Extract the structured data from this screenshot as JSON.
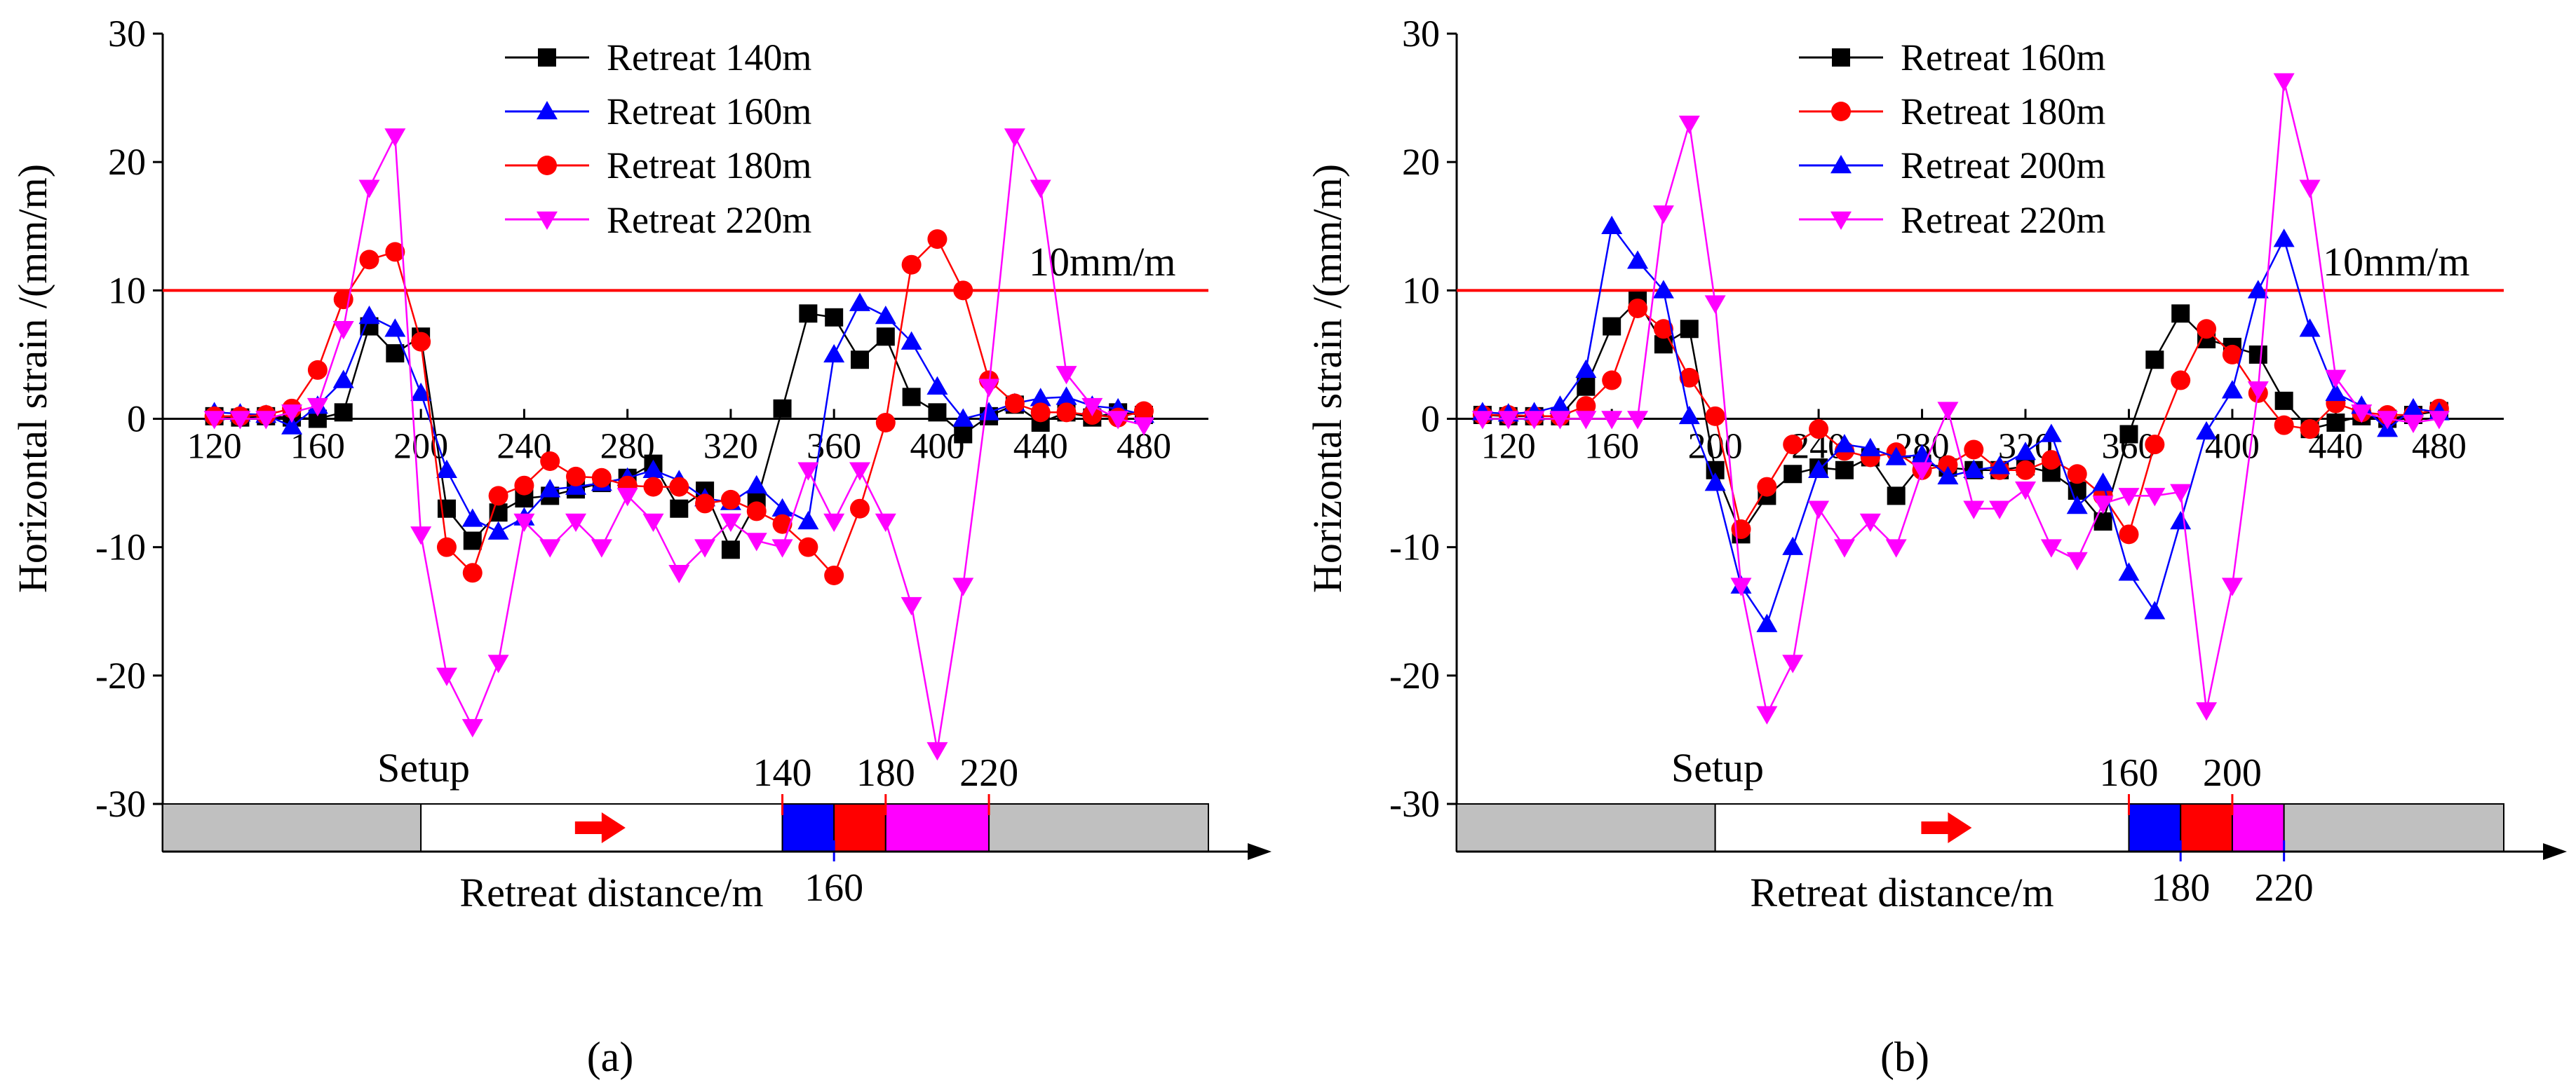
{
  "chart_data": [
    {
      "panel_label": "(a)",
      "type": "line",
      "xlabel": "Retreat distance/m",
      "ylabel": "Horizontal strain /(mm/m)",
      "xlim": [
        100,
        505
      ],
      "ylim": [
        -30,
        30
      ],
      "xticks": [
        120,
        160,
        200,
        240,
        280,
        320,
        360,
        400,
        440,
        480
      ],
      "yticks": [
        -30,
        -20,
        -10,
        0,
        10,
        20,
        30
      ],
      "threshold": {
        "value": 10,
        "label": "10mm/m",
        "color": "#ff0000"
      },
      "legend_position": "top-center",
      "x": [
        120,
        130,
        140,
        150,
        160,
        170,
        180,
        190,
        200,
        210,
        220,
        230,
        240,
        250,
        260,
        270,
        280,
        290,
        300,
        310,
        320,
        330,
        340,
        350,
        360,
        370,
        380,
        390,
        400,
        410,
        420,
        430,
        440,
        450,
        460,
        470,
        480
      ],
      "series": [
        {
          "name": "Retreat 140m",
          "color": "#000000",
          "marker": "square",
          "values": [
            0.2,
            0.1,
            0.2,
            0.1,
            0,
            0.5,
            7.2,
            5.1,
            6.4,
            -7,
            -9.5,
            -7.3,
            -6.2,
            -6,
            -5.5,
            -5,
            -4.6,
            -3.5,
            -7,
            -5.6,
            -10.2,
            -6.5,
            0.8,
            8.2,
            7.9,
            4.6,
            6.4,
            1.7,
            0.5,
            -1.2,
            0.2,
            1.1,
            -0.3,
            0.5,
            0.1,
            0.5,
            0.3
          ]
        },
        {
          "name": "Retreat 160m",
          "color": "#0000ff",
          "marker": "triangle-up",
          "values": [
            0.5,
            0.4,
            0.3,
            -0.6,
            1,
            3,
            8,
            7,
            2,
            -4,
            -7.8,
            -8.8,
            -7.7,
            -5.5,
            -5.3,
            -5,
            -4.6,
            -4,
            -4.8,
            -6.2,
            -6.5,
            -5.2,
            -7,
            -8,
            5,
            9,
            8,
            6,
            2.5,
            0,
            0.5,
            1.2,
            1.6,
            1.7,
            1,
            0.8,
            0.3
          ]
        },
        {
          "name": "Retreat 180m",
          "color": "#ff0000",
          "marker": "circle",
          "values": [
            0.2,
            0.2,
            0.3,
            0.8,
            3.8,
            9.3,
            12.4,
            13,
            6,
            -10,
            -12,
            -6,
            -5.2,
            -3.3,
            -4.5,
            -4.6,
            -5.2,
            -5.3,
            -5.3,
            -6.6,
            -6.3,
            -7.2,
            -8.2,
            -10,
            -12.2,
            -7,
            -0.3,
            12,
            14,
            10,
            3,
            1.2,
            0.5,
            0.5,
            0.3,
            0.1,
            0.6
          ]
        },
        {
          "name": "Retreat 220m",
          "color": "#ff00ff",
          "marker": "triangle-down",
          "values": [
            0,
            0,
            0,
            0.5,
            1,
            7,
            18,
            22,
            -9,
            -20,
            -24,
            -19,
            -8,
            -10,
            -8,
            -10,
            -6,
            -8,
            -12,
            -10,
            -8,
            -9.5,
            -10,
            -4,
            -8,
            -4,
            -8,
            -14.5,
            -25.8,
            -13,
            2.5,
            22,
            18,
            3.5,
            1,
            0,
            -0.5
          ]
        }
      ],
      "annotation": {
        "setup_label": "Setup",
        "top_labels": [
          "140",
          "180",
          "220"
        ],
        "bottom_labels": [
          "160"
        ],
        "regions": [
          {
            "from": 100,
            "to": 200,
            "color": "#c0c0c0"
          },
          {
            "from": 200,
            "to": 340,
            "color": "#ffffff"
          },
          {
            "from": 340,
            "to": 360,
            "color": "#0000ff"
          },
          {
            "from": 360,
            "to": 380,
            "color": "#ff0000"
          },
          {
            "from": 380,
            "to": 420,
            "color": "#ff00ff"
          },
          {
            "from": 420,
            "to": 505,
            "color": "#c0c0c0"
          }
        ],
        "ticks": [
          {
            "at": 340,
            "label": "140",
            "side": "top"
          },
          {
            "at": 360,
            "label": "160",
            "side": "bottom"
          },
          {
            "at": 380,
            "label": "180",
            "side": "top"
          },
          {
            "at": 420,
            "label": "220",
            "side": "top"
          }
        ],
        "arrow_at": 270
      }
    },
    {
      "panel_label": "(b)",
      "type": "line",
      "xlabel": "Retreat distance/m",
      "ylabel": "Horizontal strain /(mm/m)",
      "xlim": [
        100,
        505
      ],
      "ylim": [
        -30,
        30
      ],
      "xticks": [
        120,
        160,
        200,
        240,
        280,
        320,
        360,
        400,
        440,
        480
      ],
      "yticks": [
        -30,
        -20,
        -10,
        0,
        10,
        20,
        30
      ],
      "threshold": {
        "value": 10,
        "label": "10mm/m",
        "color": "#ff0000"
      },
      "legend_position": "top-center",
      "x": [
        110,
        120,
        130,
        140,
        150,
        160,
        170,
        180,
        190,
        200,
        210,
        220,
        230,
        240,
        250,
        260,
        270,
        280,
        290,
        300,
        310,
        320,
        330,
        340,
        350,
        360,
        370,
        380,
        390,
        400,
        410,
        420,
        430,
        440,
        450,
        460,
        470,
        480
      ],
      "series": [
        {
          "name": "Retreat 160m",
          "color": "#000000",
          "marker": "square",
          "values": [
            0.3,
            0.2,
            0.2,
            0.2,
            2.5,
            7.2,
            9.2,
            5.8,
            7,
            -4,
            -9,
            -6,
            -4.3,
            -3.8,
            -4,
            -3,
            -6,
            -3.5,
            -3.8,
            -4,
            -4,
            -3.7,
            -4.2,
            -5.6,
            -8,
            -1.2,
            4.6,
            8.2,
            6.2,
            5.6,
            5,
            1.4,
            -0.8,
            -0.3,
            0.2,
            0,
            0.3,
            0.6
          ]
        },
        {
          "name": "Retreat 180m",
          "color": "#ff0000",
          "marker": "circle",
          "values": [
            0.3,
            0.3,
            0.2,
            0.2,
            1,
            3,
            8.6,
            7,
            3.2,
            0.2,
            -8.6,
            -5.3,
            -2,
            -0.8,
            -2.5,
            -3,
            -2.6,
            -4,
            -3.6,
            -2.4,
            -4,
            -4,
            -3.2,
            -4.3,
            -6,
            -9,
            -2,
            3,
            7,
            5,
            2,
            -0.5,
            -0.8,
            1.2,
            0.5,
            0.3,
            0.3,
            0.8
          ]
        },
        {
          "name": "Retreat 200m",
          "color": "#0000ff",
          "marker": "triangle-up",
          "values": [
            0.5,
            0.4,
            0.5,
            1,
            3.8,
            15,
            12.3,
            10,
            0.2,
            -5,
            -13,
            -16,
            -10,
            -4,
            -2,
            -2.3,
            -3,
            -2.8,
            -4.5,
            -4,
            -3.7,
            -2.6,
            -1.2,
            -6.8,
            -5,
            -12,
            -15,
            -8,
            -1,
            2.2,
            10,
            14,
            7,
            2,
            1,
            -0.8,
            0.8,
            0.5
          ]
        },
        {
          "name": "Retreat 220m",
          "color": "#ff00ff",
          "marker": "triangle-down",
          "values": [
            0,
            0,
            0,
            0,
            0,
            0,
            0,
            16,
            23,
            9,
            -13,
            -23,
            -19,
            -7,
            -10,
            -8,
            -10,
            -4,
            0.7,
            -7,
            -7,
            -5.5,
            -10,
            -11,
            -6.6,
            -6,
            -6,
            -5.7,
            -22.7,
            -13,
            2.3,
            26.3,
            18,
            3.2,
            0.5,
            0,
            -0.3,
            0
          ]
        }
      ],
      "annotation": {
        "setup_label": "Setup",
        "top_labels": [
          "160",
          "200"
        ],
        "bottom_labels": [
          "180",
          "220"
        ],
        "regions": [
          {
            "from": 100,
            "to": 200,
            "color": "#c0c0c0"
          },
          {
            "from": 200,
            "to": 360,
            "color": "#ffffff"
          },
          {
            "from": 360,
            "to": 380,
            "color": "#0000ff"
          },
          {
            "from": 380,
            "to": 400,
            "color": "#ff0000"
          },
          {
            "from": 400,
            "to": 420,
            "color": "#ff00ff"
          },
          {
            "from": 420,
            "to": 505,
            "color": "#c0c0c0"
          }
        ],
        "ticks": [
          {
            "at": 360,
            "label": "160",
            "side": "top"
          },
          {
            "at": 380,
            "label": "180",
            "side": "bottom"
          },
          {
            "at": 400,
            "label": "200",
            "side": "top"
          },
          {
            "at": 420,
            "label": "220",
            "side": "bottom"
          }
        ],
        "arrow_at": 290
      }
    }
  ]
}
